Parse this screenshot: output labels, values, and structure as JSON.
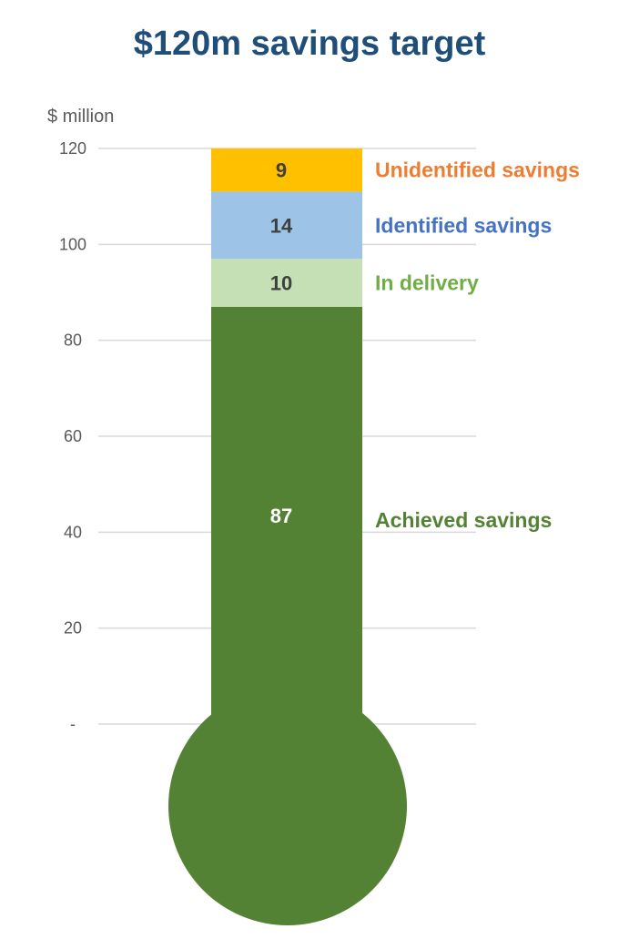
{
  "chart_data": {
    "type": "bar",
    "subtype": "stacked-thermometer",
    "title": "$120m savings target",
    "ylabel": "$ million",
    "ylim": [
      0,
      120
    ],
    "yticks": [
      0,
      20,
      40,
      60,
      80,
      100,
      120
    ],
    "ytick_labels": [
      "-",
      "20",
      "40",
      "60",
      "80",
      "100",
      "120"
    ],
    "grid": true,
    "series": [
      {
        "name": "Achieved savings",
        "value": 87,
        "color": "#548235",
        "label_color": "#548235",
        "value_color": "#ffffff"
      },
      {
        "name": "In delivery",
        "value": 10,
        "color": "#c5e0b4",
        "label_color": "#70ad47",
        "value_color": "#404040"
      },
      {
        "name": "Identified savings",
        "value": 14,
        "color": "#9dc3e6",
        "label_color": "#4472c4",
        "value_color": "#404040"
      },
      {
        "name": "Unidentified savings",
        "value": 9,
        "color": "#ffc000",
        "label_color": "#ed7d31",
        "value_color": "#404040"
      }
    ],
    "bulb_color": "#548235",
    "legend": "inline-right"
  }
}
